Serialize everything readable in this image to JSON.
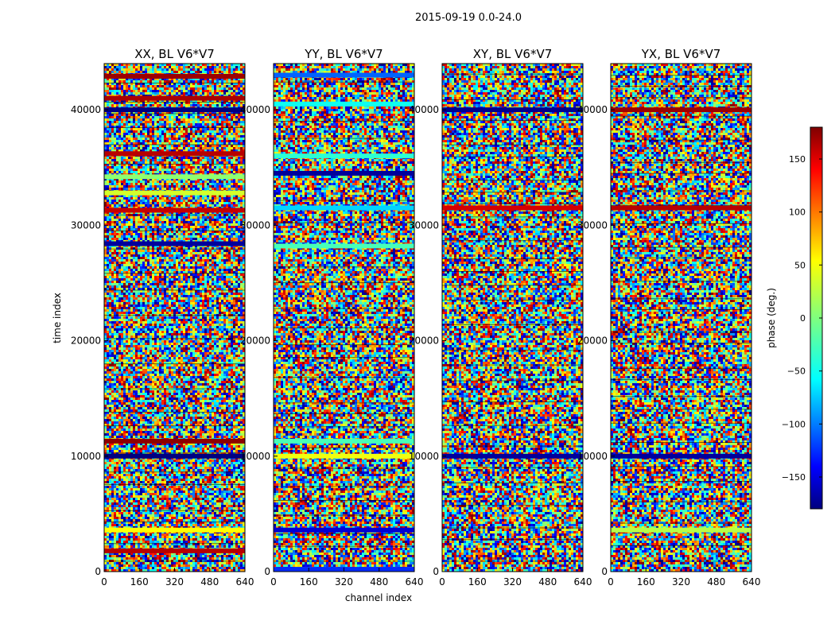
{
  "figure_title": "2015-09-19 0.0-24.0",
  "chart_data": {
    "type": "heatmap",
    "suptitle": "2015-09-19 0.0-24.0",
    "xlabel": "channel index",
    "ylabel": "time index",
    "xlim": [
      0,
      640
    ],
    "ylim": [
      0,
      44000
    ],
    "x_ticks": [
      0,
      160,
      320,
      480,
      640
    ],
    "y_ticks": [
      0,
      10000,
      20000,
      30000,
      40000
    ],
    "panels": [
      {
        "title": "XX, BL V6*V7",
        "bands": [
          {
            "y": 42900,
            "phase": 170
          },
          {
            "y": 41000,
            "phase": 165
          },
          {
            "y": 40000,
            "phase": -180
          },
          {
            "y": 36200,
            "phase": 160
          },
          {
            "y": 34200,
            "phase": 5
          },
          {
            "y": 32800,
            "phase": 30
          },
          {
            "y": 31300,
            "phase": 155
          },
          {
            "y": 28400,
            "phase": -170
          },
          {
            "y": 11300,
            "phase": 175
          },
          {
            "y": 10000,
            "phase": -180
          },
          {
            "y": 3600,
            "phase": 45
          },
          {
            "y": 1800,
            "phase": 160
          }
        ]
      },
      {
        "title": "YY, BL V6*V7",
        "bands": [
          {
            "y": 43000,
            "phase": -100
          },
          {
            "y": 40500,
            "phase": -40
          },
          {
            "y": 36000,
            "phase": -30
          },
          {
            "y": 34500,
            "phase": -170
          },
          {
            "y": 31500,
            "phase": -60
          },
          {
            "y": 28200,
            "phase": -20
          },
          {
            "y": 11300,
            "phase": -20
          },
          {
            "y": 10000,
            "phase": 40
          },
          {
            "y": 3600,
            "phase": -150
          },
          {
            "y": 200,
            "phase": -120
          }
        ]
      },
      {
        "title": "XY, BL V6*V7",
        "bands": [
          {
            "y": 40000,
            "phase": -175
          },
          {
            "y": 31500,
            "phase": 150
          },
          {
            "y": 10000,
            "phase": -170
          }
        ]
      },
      {
        "title": "YX, BL V6*V7",
        "bands": [
          {
            "y": 40000,
            "phase": 170
          },
          {
            "y": 31500,
            "phase": 160
          },
          {
            "y": 10000,
            "phase": -170
          },
          {
            "y": 3600,
            "phase": 20
          }
        ]
      }
    ],
    "colorbar": {
      "label": "phase (deg.)",
      "range": [
        -180,
        180
      ],
      "ticks": [
        -150,
        -100,
        -50,
        0,
        50,
        100,
        150
      ],
      "colormap": "jet",
      "colors": [
        "#00007f",
        "#0000ff",
        "#00ffff",
        "#7fff7f",
        "#ffff00",
        "#ff0000",
        "#7f0000"
      ]
    }
  }
}
